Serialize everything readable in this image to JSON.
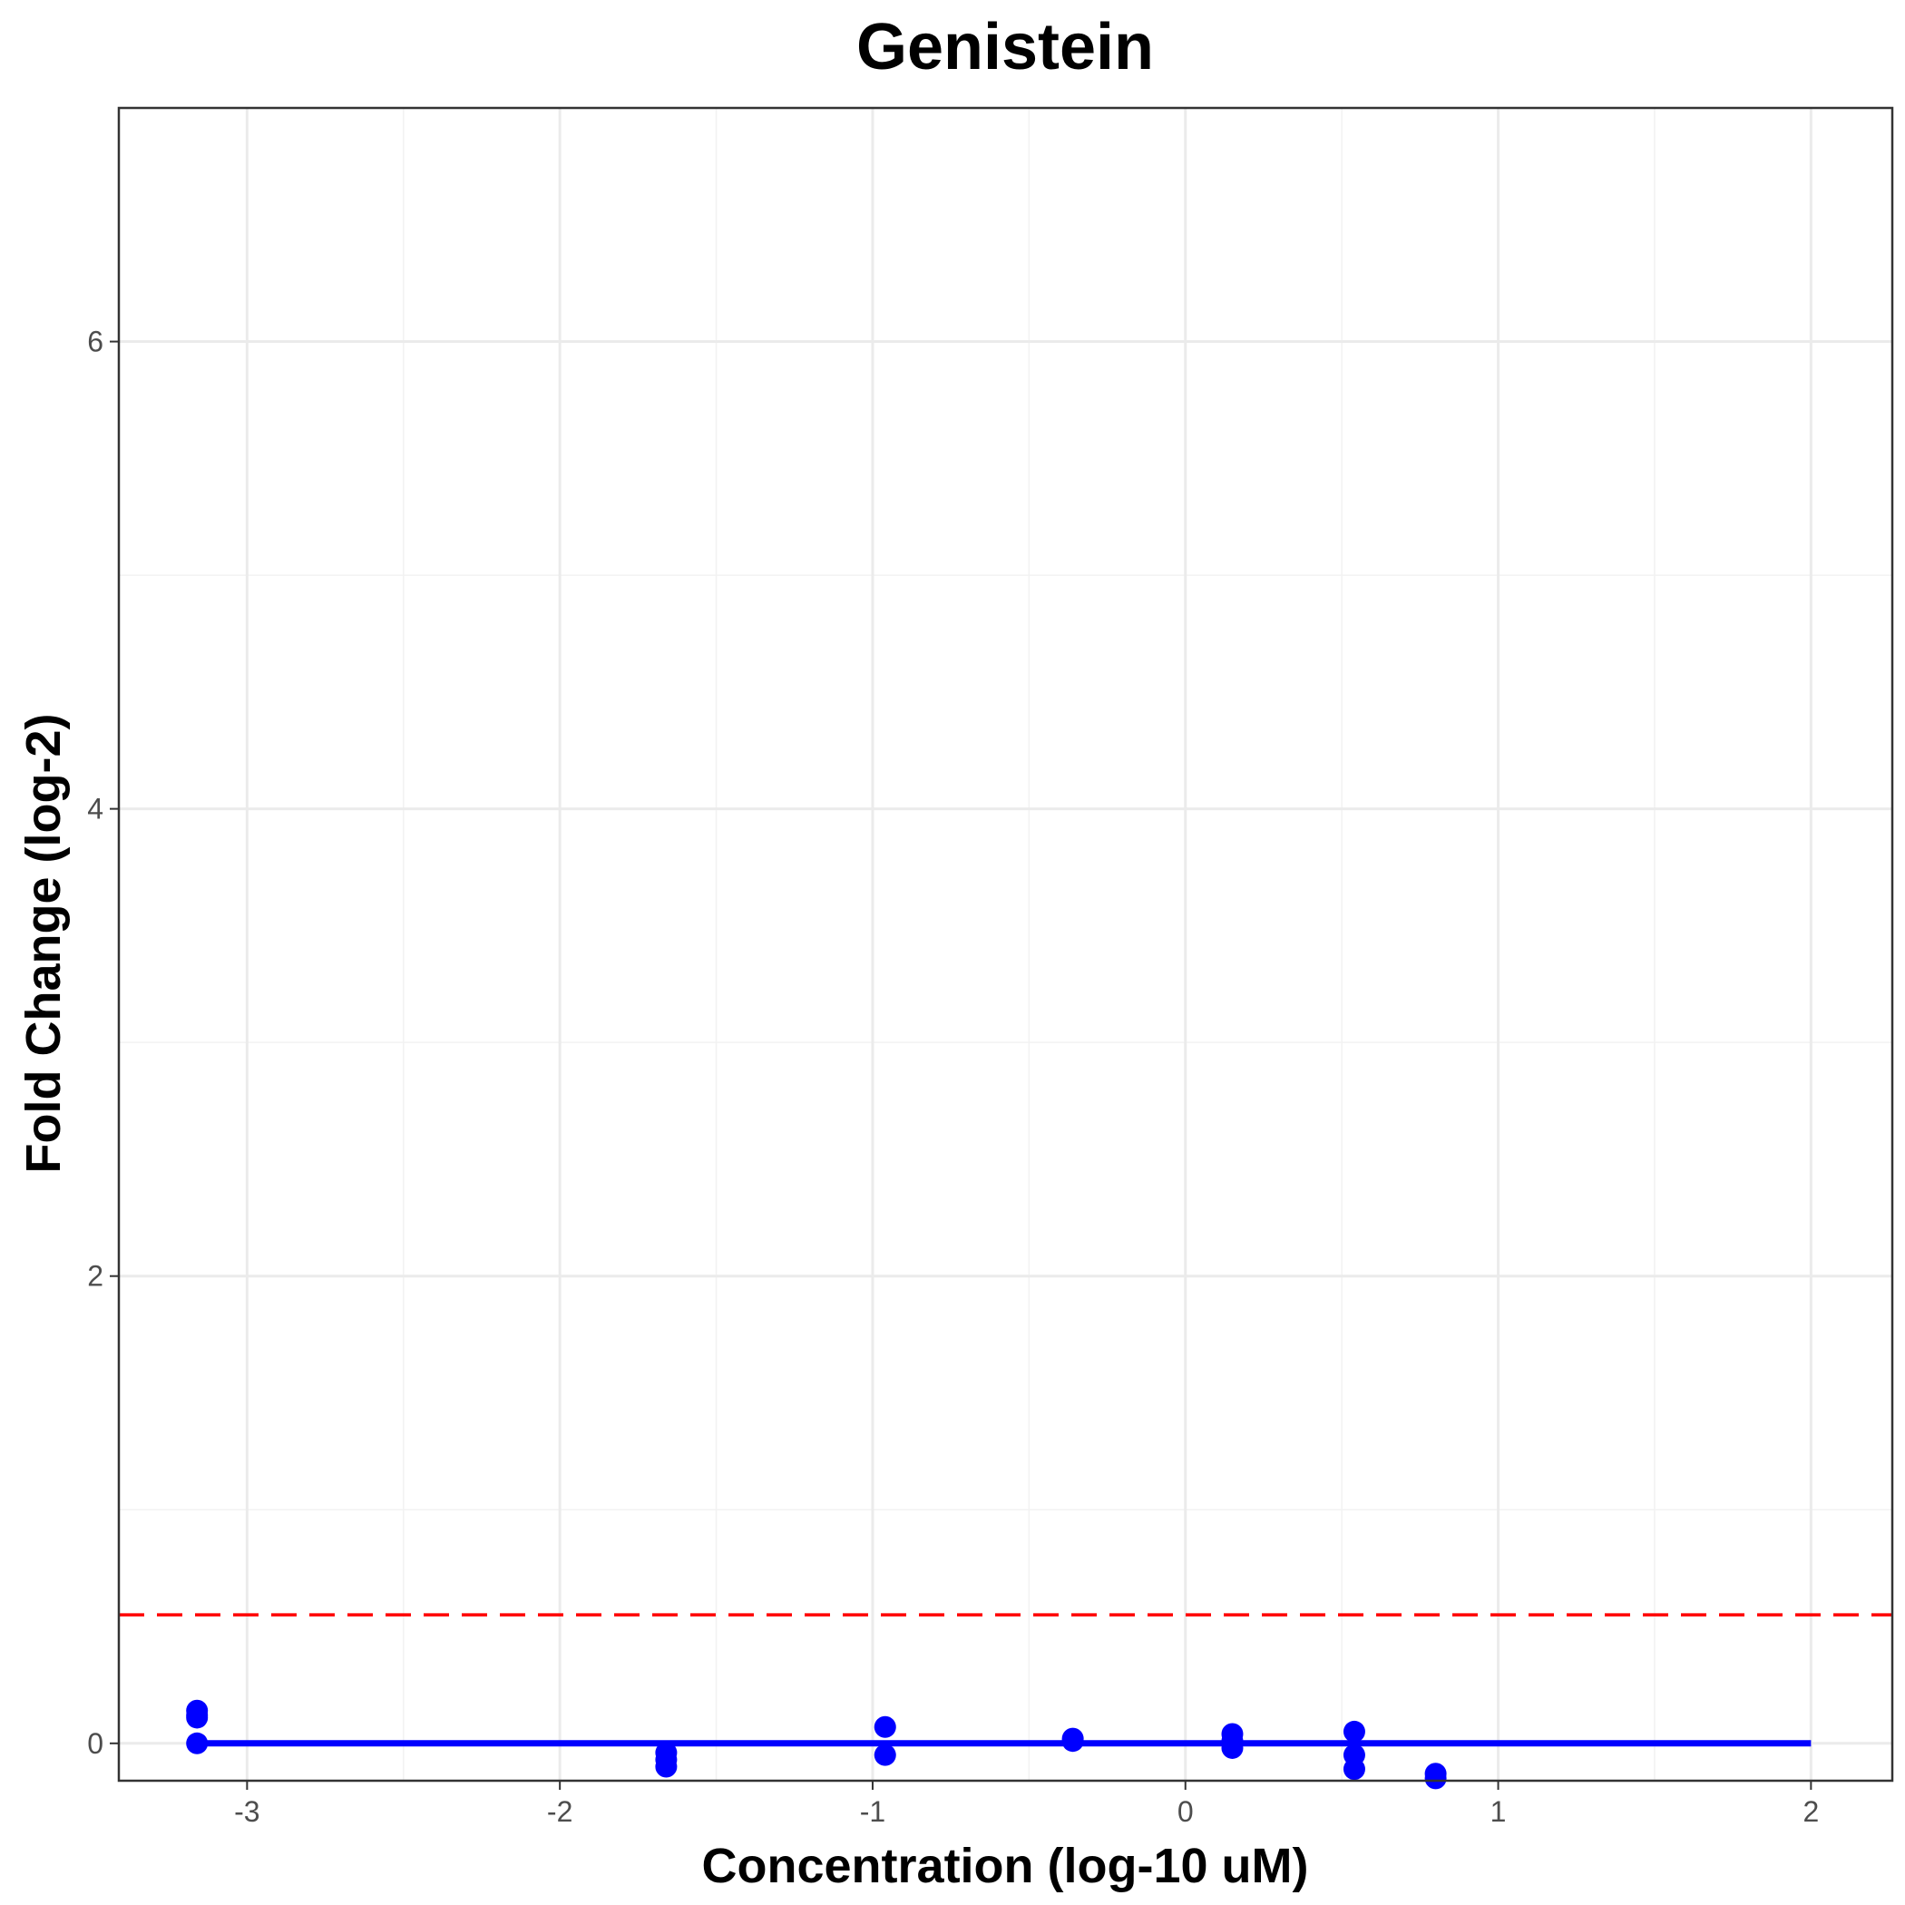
{
  "chart_data": {
    "type": "scatter",
    "title": "Genistein",
    "xlabel": "Concentration (log-10 uM)",
    "ylabel": "Fold Change (log-2)",
    "xlim": [
      -3.41,
      2.26
    ],
    "ylim": [
      -0.16,
      7.0
    ],
    "x_ticks": [
      -3,
      -2,
      -1,
      0,
      1,
      2
    ],
    "y_ticks": [
      0,
      2,
      4,
      6
    ],
    "x_tick_labels": [
      "-3",
      "-2",
      "-1",
      "0",
      "1",
      "2"
    ],
    "y_tick_labels": [
      "0",
      "2",
      "4",
      "6"
    ],
    "grid": true,
    "points": [
      {
        "x": -3.16,
        "y": 0.14
      },
      {
        "x": -3.16,
        "y": 0.12
      },
      {
        "x": -3.16,
        "y": 0.11
      },
      {
        "x": -3.16,
        "y": 0.0
      },
      {
        "x": -1.66,
        "y": -0.04
      },
      {
        "x": -1.66,
        "y": -0.07
      },
      {
        "x": -1.66,
        "y": -0.1
      },
      {
        "x": -0.96,
        "y": 0.07
      },
      {
        "x": -0.96,
        "y": -0.05
      },
      {
        "x": -0.36,
        "y": 0.02
      },
      {
        "x": -0.36,
        "y": 0.01
      },
      {
        "x": 0.15,
        "y": 0.04
      },
      {
        "x": 0.15,
        "y": 0.01
      },
      {
        "x": 0.15,
        "y": -0.02
      },
      {
        "x": 0.54,
        "y": 0.05
      },
      {
        "x": 0.54,
        "y": -0.05
      },
      {
        "x": 0.54,
        "y": -0.11
      },
      {
        "x": 0.8,
        "y": -0.13
      },
      {
        "x": 0.8,
        "y": -0.15
      }
    ],
    "fit_line": {
      "x": [
        -3.16,
        2.0
      ],
      "y": [
        0.0,
        0.0
      ],
      "color": "#0000ff"
    },
    "threshold_line": {
      "y": 0.55,
      "color": "#ff0000",
      "style": "dashed"
    },
    "point_color": "#0000ff"
  }
}
